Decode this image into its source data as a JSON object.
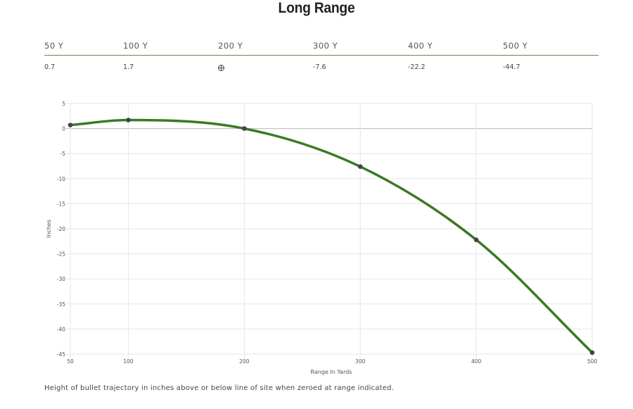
{
  "title": "Long Range",
  "table": {
    "headers": [
      "50 Y",
      "100 Y",
      "200 Y",
      "300 Y",
      "400 Y",
      "500 Y"
    ],
    "values": [
      "0.7",
      "1.7",
      "",
      "-7.6",
      "-22.2",
      "-44.7"
    ],
    "zero_icon": "crosshair-icon"
  },
  "chart_data": {
    "type": "line",
    "x": [
      50,
      100,
      200,
      300,
      400,
      500
    ],
    "series": [
      {
        "values": [
          0.7,
          1.7,
          0,
          -7.6,
          -22.2,
          -44.7
        ],
        "color": "#3a7a23"
      }
    ],
    "xticks": [
      "50",
      "100",
      "200",
      "300",
      "400",
      "500"
    ],
    "yticks": [
      "5",
      "0",
      "-5",
      "-10",
      "-15",
      "-20",
      "-25",
      "-30",
      "-35",
      "-40",
      "-45"
    ],
    "xlim": [
      50,
      500
    ],
    "ylim": [
      -45,
      5
    ],
    "xlabel": "Range In Yards",
    "ylabel": "Inches",
    "grid": true,
    "point_color": "#444444"
  },
  "caption": "Height of bullet trajectory in inches above or below line of site when zeroed at range indicated."
}
